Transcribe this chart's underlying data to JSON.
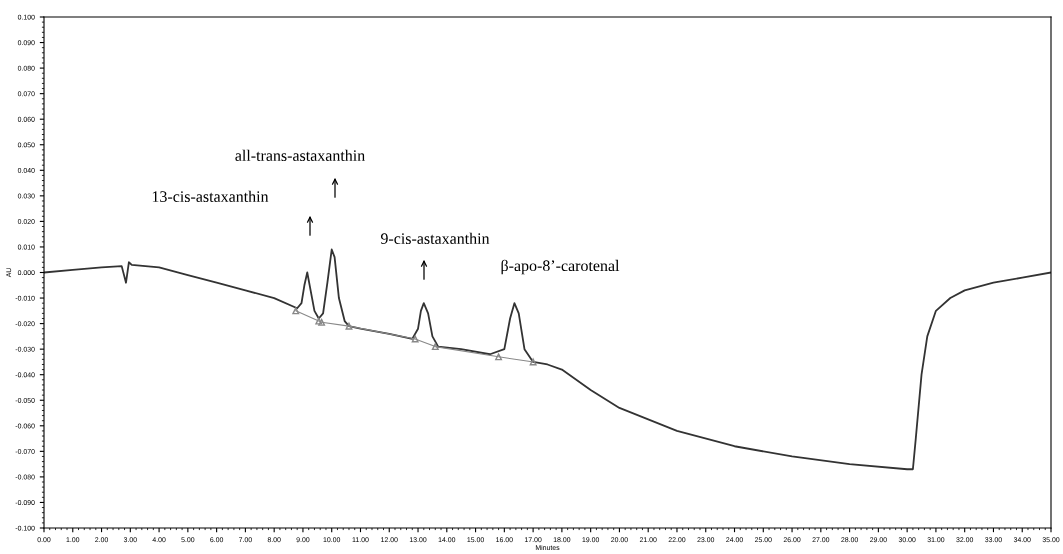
{
  "chart_data": {
    "type": "line",
    "xlabel": "Minutes",
    "ylabel": "AU",
    "xlim": [
      0,
      35
    ],
    "ylim": [
      -0.1,
      0.1
    ],
    "xticks": [
      {
        "value": 0,
        "label": "0.00"
      },
      {
        "value": 1,
        "label": "1.00"
      },
      {
        "value": 2,
        "label": "2.00"
      },
      {
        "value": 3,
        "label": "3.00"
      },
      {
        "value": 4,
        "label": "4.00"
      },
      {
        "value": 5,
        "label": "5.00"
      },
      {
        "value": 6,
        "label": "6.00"
      },
      {
        "value": 7,
        "label": "7.00"
      },
      {
        "value": 8,
        "label": "8.00"
      },
      {
        "value": 9,
        "label": "9.00"
      },
      {
        "value": 10,
        "label": "10.00"
      },
      {
        "value": 11,
        "label": "11.00"
      },
      {
        "value": 12,
        "label": "12.00"
      },
      {
        "value": 13,
        "label": "13.00"
      },
      {
        "value": 14,
        "label": "14.00"
      },
      {
        "value": 15,
        "label": "15.00"
      },
      {
        "value": 16,
        "label": "16.00"
      },
      {
        "value": 17,
        "label": "17.00"
      },
      {
        "value": 18,
        "label": "18.00"
      },
      {
        "value": 19,
        "label": "19.00"
      },
      {
        "value": 20,
        "label": "20.00"
      },
      {
        "value": 21,
        "label": "21.00"
      },
      {
        "value": 22,
        "label": "22.00"
      },
      {
        "value": 23,
        "label": "23.00"
      },
      {
        "value": 24,
        "label": "24.00"
      },
      {
        "value": 25,
        "label": "25.00"
      },
      {
        "value": 26,
        "label": "26.00"
      },
      {
        "value": 27,
        "label": "27.00"
      },
      {
        "value": 28,
        "label": "28.00"
      },
      {
        "value": 29,
        "label": "29.00"
      },
      {
        "value": 30,
        "label": "30.00"
      },
      {
        "value": 31,
        "label": "31.00"
      },
      {
        "value": 32,
        "label": "32.00"
      },
      {
        "value": 33,
        "label": "33.00"
      },
      {
        "value": 34,
        "label": "34.00"
      },
      {
        "value": 35,
        "label": "35.00"
      }
    ],
    "yticks": [
      {
        "value": 0.1,
        "label": "0.100"
      },
      {
        "value": 0.09,
        "label": "0.090"
      },
      {
        "value": 0.08,
        "label": "0.080"
      },
      {
        "value": 0.07,
        "label": "0.070"
      },
      {
        "value": 0.06,
        "label": "0.060"
      },
      {
        "value": 0.05,
        "label": "0.050"
      },
      {
        "value": 0.04,
        "label": "0.040"
      },
      {
        "value": 0.03,
        "label": "0.030"
      },
      {
        "value": 0.02,
        "label": "0.020"
      },
      {
        "value": 0.01,
        "label": "0.010"
      },
      {
        "value": 0,
        "label": "0.000"
      },
      {
        "value": -0.01,
        "label": "-0.010"
      },
      {
        "value": -0.02,
        "label": "-0.020"
      },
      {
        "value": -0.03,
        "label": "-0.030"
      },
      {
        "value": -0.04,
        "label": "-0.040"
      },
      {
        "value": -0.05,
        "label": "-0.050"
      },
      {
        "value": -0.06,
        "label": "-0.060"
      },
      {
        "value": -0.07,
        "label": "-0.070"
      },
      {
        "value": -0.08,
        "label": "-0.080"
      },
      {
        "value": -0.09,
        "label": "-0.090"
      },
      {
        "value": -0.1,
        "label": "-0.100"
      }
    ],
    "grid": false,
    "legend": false,
    "series": [
      {
        "color": "#333333",
        "marker": "none",
        "line_style": "solid",
        "x": [
          0,
          1,
          2,
          2.7,
          2.85,
          2.95,
          3.05,
          4,
          5,
          6,
          7,
          8,
          8.8,
          8.95,
          9.05,
          9.15,
          9.25,
          9.4,
          9.55,
          9.7,
          9.85,
          10.0,
          10.1,
          10.25,
          10.45,
          10.6,
          11,
          12,
          12.8,
          13.0,
          13.1,
          13.2,
          13.35,
          13.5,
          13.7,
          14.5,
          15.5,
          16.0,
          16.2,
          16.35,
          16.5,
          16.7,
          17,
          17.5,
          18,
          19,
          20,
          22,
          24,
          26,
          28,
          30,
          30.2,
          30.3,
          30.5,
          30.7,
          31.0,
          31.5,
          32,
          33,
          34,
          35
        ],
        "values": [
          0.0,
          0.001,
          0.002,
          0.0025,
          -0.004,
          0.004,
          0.003,
          0.002,
          -0.001,
          -0.004,
          -0.007,
          -0.01,
          -0.014,
          -0.012,
          -0.005,
          0.0,
          -0.006,
          -0.015,
          -0.018,
          -0.016,
          -0.004,
          0.009,
          0.006,
          -0.01,
          -0.019,
          -0.021,
          -0.022,
          -0.024,
          -0.026,
          -0.022,
          -0.015,
          -0.012,
          -0.016,
          -0.025,
          -0.029,
          -0.03,
          -0.032,
          -0.03,
          -0.018,
          -0.012,
          -0.016,
          -0.03,
          -0.035,
          -0.036,
          -0.038,
          -0.046,
          -0.053,
          -0.062,
          -0.068,
          -0.072,
          -0.075,
          -0.077,
          -0.077,
          -0.065,
          -0.04,
          -0.025,
          -0.015,
          -0.01,
          -0.007,
          -0.004,
          -0.002,
          0.0
        ]
      },
      {
        "color": "#888888",
        "marker": "triangle",
        "line_style": "solid",
        "x": [
          8.75,
          9.55,
          9.65,
          10.6,
          12.9,
          13.6,
          15.8,
          17.0
        ],
        "values": [
          -0.015,
          -0.019,
          -0.0195,
          -0.021,
          -0.026,
          -0.029,
          -0.033,
          -0.035
        ]
      }
    ],
    "annotations": [
      "13-cis-astaxanthin",
      "all-trans-astaxanthin",
      "9-cis-astaxanthin",
      "β-apo-8’-carotenal"
    ]
  }
}
